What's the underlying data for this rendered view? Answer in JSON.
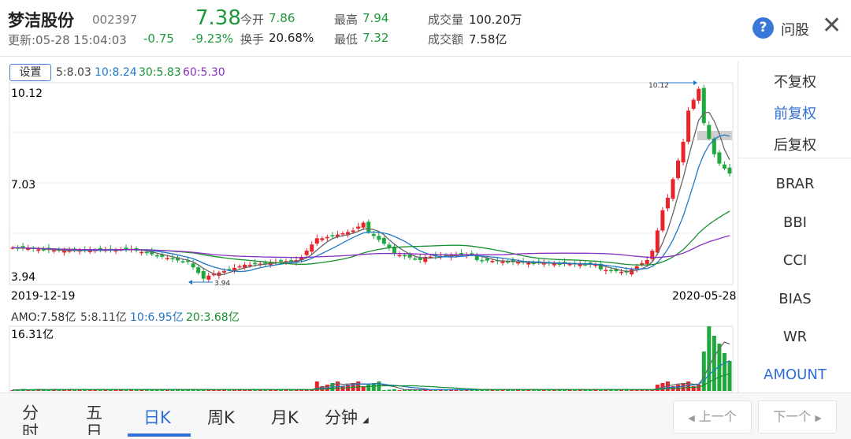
{
  "header": {
    "stock_name": "梦洁股份",
    "stock_code": "002397",
    "update_time": "更新:05-28 15:04:03",
    "price": "7.38",
    "change": "-0.75",
    "change_pct": "-9.23%",
    "quotes": [
      {
        "label": "今开",
        "value": "7.86"
      },
      {
        "label": "换手",
        "value": "20.68%"
      },
      {
        "label": "最高",
        "value": "7.94"
      },
      {
        "label": "最低",
        "value": "7.32"
      },
      {
        "label": "成交量",
        "value": "100.20万"
      },
      {
        "label": "成交额",
        "value": "7.58亿"
      }
    ],
    "help_label": "问股"
  },
  "ma_bar": {
    "settings_label": "设置",
    "ma5": "5:8.03",
    "ma10": "10:8.24",
    "ma30": "30:5.83",
    "ma60": "60:5.30"
  },
  "right_panel": {
    "adjust": [
      "不复权",
      "前复权",
      "后复权"
    ],
    "indicators": [
      "BRAR",
      "BBI",
      "CCI",
      "BIAS",
      "WR",
      "AMOUNT"
    ]
  },
  "kline": {
    "max_label": "10.12",
    "mid_label": "7.03",
    "min_label": "3.94",
    "max_mark": "10.12",
    "min_mark": "3.94",
    "start_date": "2019-12-19",
    "end_date": "2020-05-28"
  },
  "amount_bar": {
    "amo": "AMO:7.58亿",
    "ma5": "5:8.11亿",
    "ma10": "10:6.95亿",
    "ma20": "20:3.68亿",
    "max_label": "16.31亿"
  },
  "bottom_tabs": [
    "分时",
    "五日",
    "日K",
    "周K",
    "月K",
    "分钟"
  ],
  "nav": {
    "prev": "上一个",
    "next": "下一个"
  },
  "colors": {
    "up": "#e8232a",
    "down": "#1fa83c",
    "ma5": "#666666",
    "ma10": "#1f78c8",
    "ma30": "#16902f",
    "ma60": "#8a2fc0",
    "accent": "#2f6fd6"
  },
  "chart_data": {
    "type": "candlestick",
    "price_range": [
      3.94,
      10.12
    ],
    "x_range": [
      "2019-12-19",
      "2020-05-28"
    ],
    "notable": {
      "high": 10.12,
      "low": 3.94
    },
    "last_close": 7.38,
    "amount_max": 16.31
  }
}
